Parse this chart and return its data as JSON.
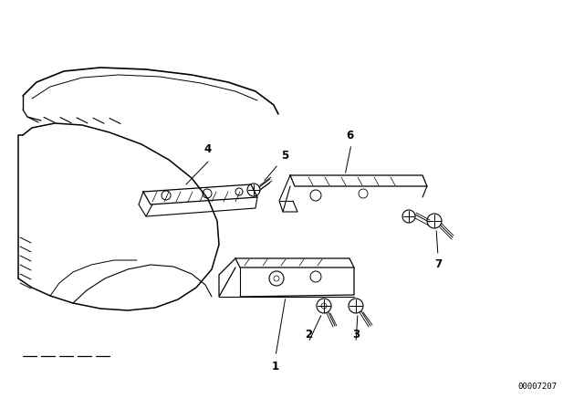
{
  "bg_color": "#ffffff",
  "line_color": "#000000",
  "diagram_number": "00007207",
  "label_fontsize": 8.5
}
